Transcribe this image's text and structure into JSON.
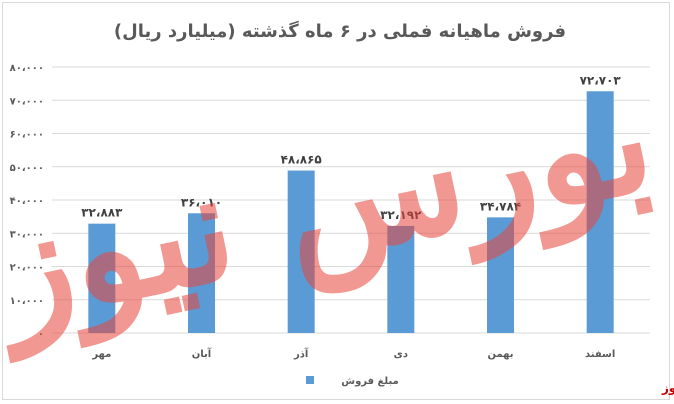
{
  "chart_data": {
    "type": "bar",
    "title": "فروش ماهیانه فملی در ۶ ماه گذشته (میلیارد ریال)",
    "categories": [
      "مهر",
      "آبان",
      "آذر",
      "دی",
      "بهمن",
      "اسفند"
    ],
    "series": [
      {
        "name": "مبلغ فروش",
        "values": [
          32883,
          36010,
          48865,
          32192,
          34784,
          72703
        ],
        "labels": [
          "۳۲،۸۸۳",
          "۳۶،۰۱۰",
          "۴۸،۸۶۵",
          "۳۲،۱۹۲",
          "۳۴،۷۸۴",
          "۷۲،۷۰۳"
        ]
      }
    ],
    "ylim": [
      0,
      80000
    ],
    "yticks": [
      0,
      10000,
      20000,
      30000,
      40000,
      50000,
      60000,
      70000,
      80000
    ],
    "ytick_labels": [
      "۰",
      "۱۰،۰۰۰",
      "۲۰،۰۰۰",
      "۳۰،۰۰۰",
      "۴۰،۰۰۰",
      "۵۰،۰۰۰",
      "۶۰،۰۰۰",
      "۷۰،۰۰۰",
      "۸۰،۰۰۰"
    ],
    "grid": true,
    "legend_position": "bottom",
    "bar_color": "#5b9bd5"
  },
  "watermark": {
    "text": "بورس نیوز",
    "color": "#e8453c"
  },
  "brand": {
    "text": "بورس نیوز",
    "color": "#c00000"
  }
}
